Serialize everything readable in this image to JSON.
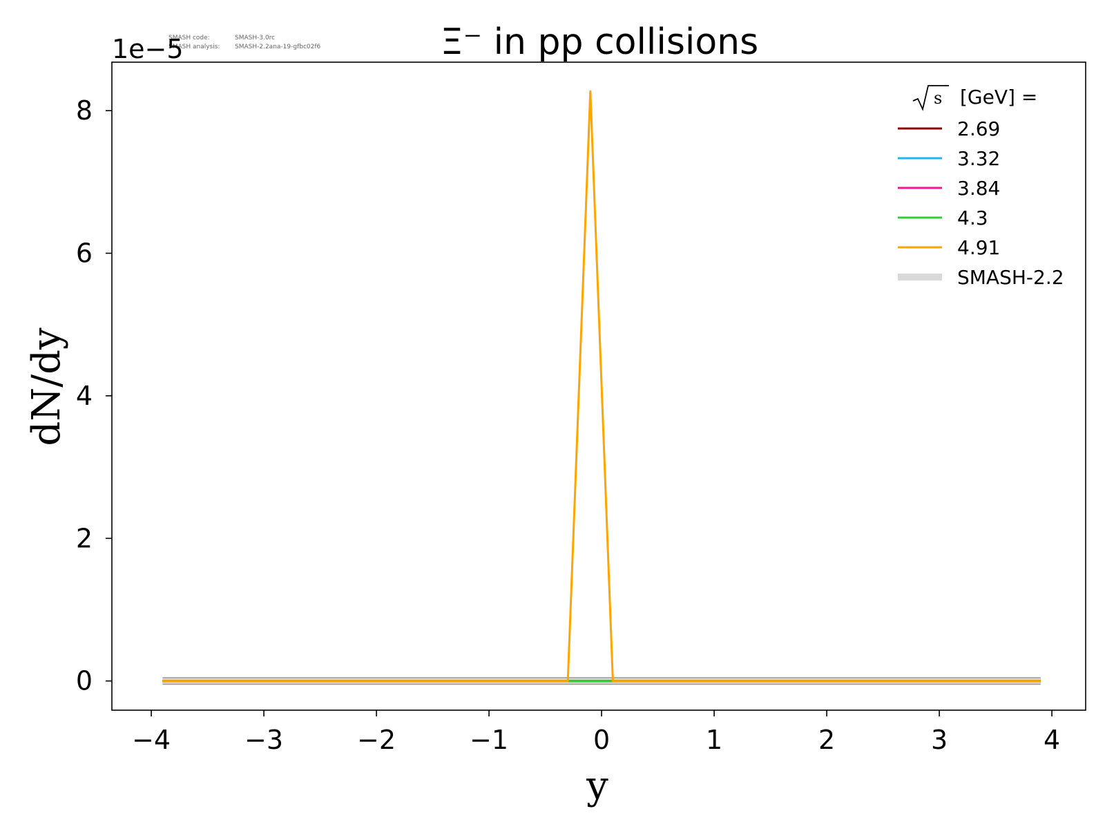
{
  "version_info": {
    "code_label": "SMASH code:",
    "code_value": "SMASH-3.0rc",
    "analysis_label": "SMASH analysis:",
    "analysis_value": "SMASH-2.2ana-19-gfbc02f6"
  },
  "chart_data": {
    "type": "line",
    "title": "Ξ⁻ in pp collisions",
    "xlabel": "y",
    "ylabel": "dN/dy",
    "y_offset_label": "1e−5",
    "xlim": [
      -4.35,
      4.3
    ],
    "ylim": [
      -0.41,
      8.68
    ],
    "y_units": "1e-5",
    "xticks": [
      -4,
      -3,
      -2,
      -1,
      0,
      1,
      2,
      3,
      4
    ],
    "xtick_labels": [
      "−4",
      "−3",
      "−2",
      "−1",
      "0",
      "1",
      "2",
      "3",
      "4"
    ],
    "yticks": [
      0,
      2,
      4,
      6,
      8
    ],
    "ytick_labels": [
      "0",
      "2",
      "4",
      "6",
      "8"
    ],
    "grid": false,
    "legend": {
      "title": "[GeV] =",
      "title_sqrt": "s",
      "placement": "top-right",
      "entries": [
        "2.69",
        "3.32",
        "3.84",
        "4.3",
        "4.91",
        "SMASH-2.2"
      ]
    },
    "series": [
      {
        "name": "SMASH-2.2",
        "color": "#d9d9d9",
        "style": "reference-band",
        "x": [
          -3.9,
          -3.7,
          -3.5,
          -3.3,
          -3.1,
          -2.9,
          -2.7,
          -2.5,
          -2.3,
          -2.1,
          -1.9,
          -1.7,
          -1.5,
          -1.3,
          -1.1,
          -0.9,
          -0.7,
          -0.5,
          -0.3,
          -0.1,
          0.1,
          0.3,
          0.5,
          0.7,
          0.9,
          1.1,
          1.3,
          1.5,
          1.7,
          1.9,
          2.1,
          2.3,
          2.5,
          2.7,
          2.9,
          3.1,
          3.3,
          3.5,
          3.7,
          3.9
        ],
        "y": [
          0,
          0,
          0,
          0,
          0,
          0,
          0,
          0,
          0,
          0,
          0,
          0,
          0,
          0,
          0,
          0,
          0,
          0,
          0,
          0,
          0,
          0,
          0,
          0,
          0,
          0,
          0,
          0,
          0,
          0,
          0,
          0,
          0,
          0,
          0,
          0,
          0,
          0,
          0,
          0
        ]
      },
      {
        "name": "2.69",
        "color": "#8b0000",
        "x": [
          -3.9,
          -0.3,
          -0.1,
          0.1,
          3.9
        ],
        "y": [
          0,
          0,
          0,
          0,
          0
        ]
      },
      {
        "name": "3.32",
        "color": "#1eb4f0",
        "x": [
          -3.9,
          -0.3,
          -0.1,
          0.1,
          3.9
        ],
        "y": [
          0,
          0,
          0,
          0,
          0
        ]
      },
      {
        "name": "3.84",
        "color": "#ff1493",
        "x": [
          -3.9,
          -0.3,
          -0.1,
          0.1,
          3.9
        ],
        "y": [
          0,
          0,
          0,
          0,
          0
        ]
      },
      {
        "name": "4.3",
        "color": "#32cd32",
        "x": [
          -3.9,
          -0.3,
          -0.1,
          0.1,
          3.9
        ],
        "y": [
          0,
          0,
          0,
          0,
          0
        ]
      },
      {
        "name": "4.91",
        "color": "#ffa500",
        "x": [
          -3.9,
          -0.3,
          -0.1,
          0.1,
          3.9
        ],
        "y": [
          0,
          0,
          8.27,
          0,
          0
        ]
      }
    ]
  }
}
